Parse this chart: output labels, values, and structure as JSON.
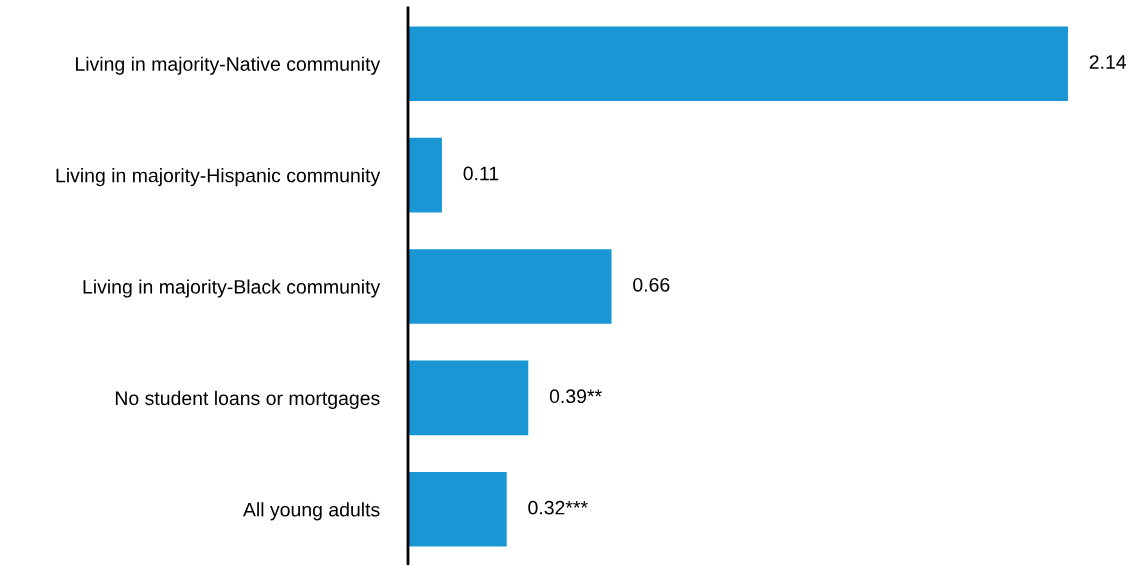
{
  "chart_data": {
    "type": "bar",
    "orientation": "horizontal",
    "categories": [
      "Living in majority-Native community",
      "Living in majority-Hispanic community",
      "Living in majority-Black community",
      "No student loans or mortgages",
      "All young adults"
    ],
    "values": [
      2.14,
      0.11,
      0.66,
      0.39,
      0.32
    ],
    "value_labels": [
      "2.14",
      "0.11",
      "0.66",
      "0.39**",
      "0.32***"
    ],
    "color": "#1a96d4",
    "grid": false,
    "legend": false,
    "tick_labels": "y"
  }
}
